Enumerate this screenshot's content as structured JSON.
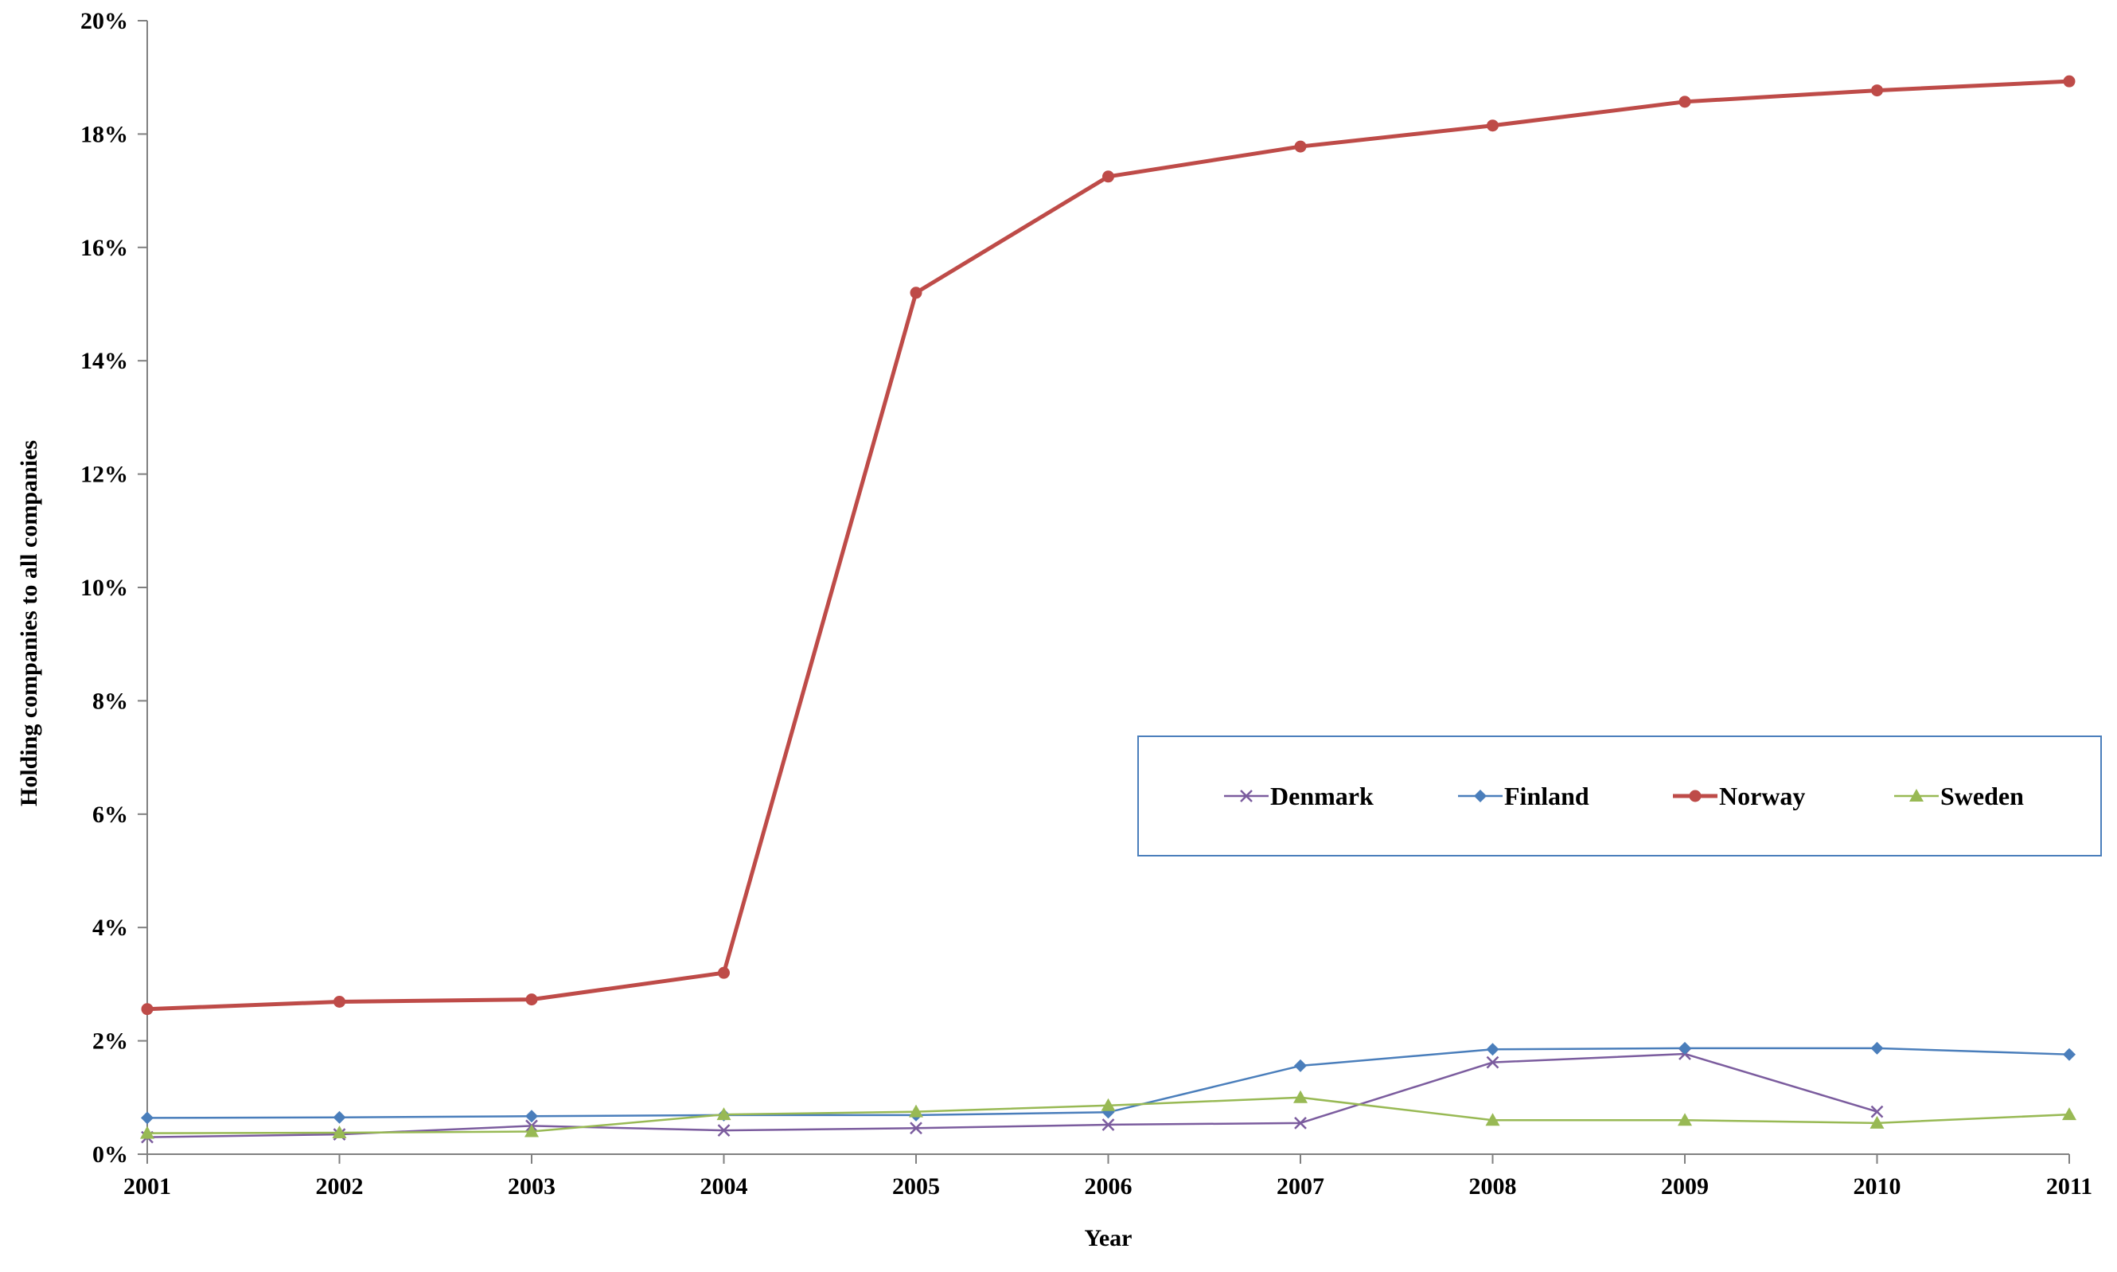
{
  "chart_data": {
    "type": "line",
    "title": "",
    "xlabel": "Year",
    "ylabel": "Holding companies to all companies",
    "x": [
      "2001",
      "2002",
      "2003",
      "2004",
      "2005",
      "2006",
      "2007",
      "2008",
      "2009",
      "2010",
      "2011"
    ],
    "ylim": [
      0,
      20
    ],
    "yticks": [
      "0%",
      "2%",
      "4%",
      "6%",
      "8%",
      "10%",
      "12%",
      "14%",
      "16%",
      "18%",
      "20%"
    ],
    "grid": false,
    "legend_position": "center-right",
    "series": [
      {
        "name": "Denmark",
        "color": "#7B5C9E",
        "marker": "x",
        "values": [
          0.3,
          0.35,
          0.5,
          0.42,
          0.46,
          0.52,
          0.55,
          1.62,
          1.77,
          0.75,
          null
        ]
      },
      {
        "name": "Finland",
        "color": "#4A7EBB",
        "marker": "diamond",
        "values": [
          0.64,
          0.65,
          0.67,
          0.69,
          0.69,
          0.74,
          1.56,
          1.85,
          1.87,
          1.87,
          1.76
        ]
      },
      {
        "name": "Norway",
        "color": "#BE4B48",
        "marker": "circle",
        "values": [
          2.56,
          2.69,
          2.73,
          3.2,
          15.2,
          17.25,
          17.78,
          18.15,
          18.57,
          18.77,
          18.93
        ]
      },
      {
        "name": "Sweden",
        "color": "#98B954",
        "marker": "triangle",
        "values": [
          0.37,
          0.38,
          0.4,
          0.7,
          0.75,
          0.86,
          1.0,
          0.6,
          0.6,
          0.55,
          0.7
        ]
      }
    ]
  }
}
